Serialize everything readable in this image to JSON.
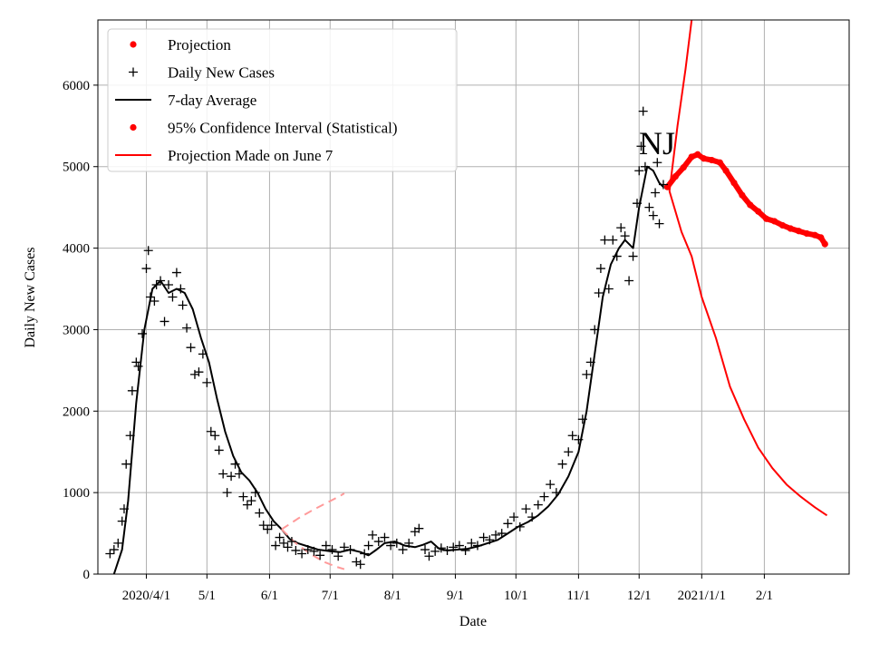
{
  "chart_data": {
    "type": "line",
    "annotation": "NJ",
    "xlabel": "Date",
    "ylabel": "Daily New Cases",
    "ylim": [
      0,
      6800
    ],
    "xlim": [
      "2020-03-08",
      "2021-03-15"
    ],
    "grid": true,
    "legend_position": "top-left",
    "y_ticks": [
      0,
      1000,
      2000,
      3000,
      4000,
      5000,
      6000
    ],
    "x_ticks": [
      {
        "date": "2020-04-01",
        "label": "2020/4/1"
      },
      {
        "date": "2020-05-01",
        "label": "5/1"
      },
      {
        "date": "2020-06-01",
        "label": "6/1"
      },
      {
        "date": "2020-07-01",
        "label": "7/1"
      },
      {
        "date": "2020-08-01",
        "label": "8/1"
      },
      {
        "date": "2020-09-01",
        "label": "9/1"
      },
      {
        "date": "2020-10-01",
        "label": "10/1"
      },
      {
        "date": "2020-11-01",
        "label": "11/1"
      },
      {
        "date": "2020-12-01",
        "label": "12/1"
      },
      {
        "date": "2021-01-01",
        "label": "2021/1/1"
      },
      {
        "date": "2021-02-01",
        "label": "2/1"
      }
    ],
    "legend": [
      {
        "label": "Projection",
        "marker": "dot",
        "color": "#ff0000"
      },
      {
        "label": "Daily New Cases",
        "marker": "plus",
        "color": "#000000"
      },
      {
        "label": "7-day Average",
        "marker": "line",
        "color": "#000000"
      },
      {
        "label": "95% Confidence Interval (Statistical)",
        "marker": "dot",
        "color": "#ff0000"
      },
      {
        "label": "Projection Made on June 7",
        "marker": "line",
        "color": "#ff0000"
      }
    ],
    "series": [
      {
        "name": "7-day Average",
        "color": "#000000",
        "style": "line",
        "points": [
          [
            "2020-03-16",
            0
          ],
          [
            "2020-03-20",
            300
          ],
          [
            "2020-03-23",
            900
          ],
          [
            "2020-03-27",
            2100
          ],
          [
            "2020-03-31",
            3000
          ],
          [
            "2020-04-04",
            3500
          ],
          [
            "2020-04-08",
            3600
          ],
          [
            "2020-04-12",
            3450
          ],
          [
            "2020-04-16",
            3500
          ],
          [
            "2020-04-20",
            3450
          ],
          [
            "2020-04-24",
            3250
          ],
          [
            "2020-04-28",
            2900
          ],
          [
            "2020-05-02",
            2600
          ],
          [
            "2020-05-06",
            2150
          ],
          [
            "2020-05-10",
            1750
          ],
          [
            "2020-05-14",
            1450
          ],
          [
            "2020-05-18",
            1250
          ],
          [
            "2020-05-22",
            1150
          ],
          [
            "2020-05-26",
            1000
          ],
          [
            "2020-05-30",
            800
          ],
          [
            "2020-06-03",
            650
          ],
          [
            "2020-06-07",
            550
          ],
          [
            "2020-06-11",
            430
          ],
          [
            "2020-06-15",
            380
          ],
          [
            "2020-06-20",
            340
          ],
          [
            "2020-06-25",
            300
          ],
          [
            "2020-07-01",
            280
          ],
          [
            "2020-07-06",
            270
          ],
          [
            "2020-07-11",
            300
          ],
          [
            "2020-07-16",
            270
          ],
          [
            "2020-07-20",
            230
          ],
          [
            "2020-07-24",
            300
          ],
          [
            "2020-07-28",
            380
          ],
          [
            "2020-08-02",
            400
          ],
          [
            "2020-08-07",
            350
          ],
          [
            "2020-08-12",
            330
          ],
          [
            "2020-08-16",
            360
          ],
          [
            "2020-08-20",
            400
          ],
          [
            "2020-08-24",
            310
          ],
          [
            "2020-08-28",
            290
          ],
          [
            "2020-09-02",
            300
          ],
          [
            "2020-09-07",
            310
          ],
          [
            "2020-09-12",
            340
          ],
          [
            "2020-09-17",
            380
          ],
          [
            "2020-09-22",
            420
          ],
          [
            "2020-09-27",
            500
          ],
          [
            "2020-10-02",
            580
          ],
          [
            "2020-10-07",
            640
          ],
          [
            "2020-10-12",
            720
          ],
          [
            "2020-10-17",
            830
          ],
          [
            "2020-10-22",
            980
          ],
          [
            "2020-10-27",
            1200
          ],
          [
            "2020-11-01",
            1500
          ],
          [
            "2020-11-05",
            2000
          ],
          [
            "2020-11-09",
            2700
          ],
          [
            "2020-11-13",
            3400
          ],
          [
            "2020-11-17",
            3800
          ],
          [
            "2020-11-21",
            4000
          ],
          [
            "2020-11-24",
            4100
          ],
          [
            "2020-11-28",
            4000
          ],
          [
            "2020-12-01",
            4500
          ],
          [
            "2020-12-05",
            5000
          ],
          [
            "2020-12-08",
            4950
          ],
          [
            "2020-12-11",
            4800
          ],
          [
            "2020-12-13",
            4750
          ]
        ]
      },
      {
        "name": "Projection Made on June 7",
        "color": "#ff0000",
        "style": "line",
        "points": [
          [
            "2020-12-16",
            4700
          ],
          [
            "2020-12-22",
            4200
          ],
          [
            "2020-12-27",
            3900
          ],
          [
            "2021-01-01",
            3400
          ],
          [
            "2021-01-08",
            2900
          ],
          [
            "2021-01-15",
            2300
          ],
          [
            "2021-01-22",
            1900
          ],
          [
            "2021-01-29",
            1550
          ],
          [
            "2021-02-05",
            1300
          ],
          [
            "2021-02-12",
            1100
          ],
          [
            "2021-02-19",
            950
          ],
          [
            "2021-02-26",
            820
          ],
          [
            "2021-03-04",
            720
          ]
        ]
      },
      {
        "name": "Projection Made on June 7 (upper)",
        "color": "#ff0000",
        "style": "line",
        "points": [
          [
            "2020-12-16",
            4700
          ],
          [
            "2020-12-20",
            5500
          ],
          [
            "2020-12-24",
            6200
          ],
          [
            "2020-12-27",
            6800
          ]
        ]
      },
      {
        "name": "95% Confidence Interval (Statistical)",
        "color": "#ff9a9a",
        "style": "dashed",
        "points": [
          [
            "2020-06-07",
            550
          ],
          [
            "2020-06-15",
            680
          ],
          [
            "2020-06-22",
            780
          ],
          [
            "2020-06-29",
            870
          ],
          [
            "2020-07-06",
            960
          ],
          [
            "2020-07-08",
            990
          ]
        ]
      },
      {
        "name": "95% Confidence Interval (Statistical) lower",
        "color": "#ff9a9a",
        "style": "dashed",
        "points": [
          [
            "2020-06-07",
            550
          ],
          [
            "2020-06-14",
            380
          ],
          [
            "2020-06-21",
            250
          ],
          [
            "2020-06-28",
            150
          ],
          [
            "2020-07-04",
            90
          ],
          [
            "2020-07-08",
            60
          ]
        ]
      },
      {
        "name": "Projection",
        "color": "#ff0000",
        "style": "dots",
        "points": [
          [
            "2020-12-15",
            4750
          ],
          [
            "2020-12-19",
            4880
          ],
          [
            "2020-12-23",
            4990
          ],
          [
            "2020-12-27",
            5120
          ],
          [
            "2020-12-30",
            5150
          ],
          [
            "2021-01-02",
            5100
          ],
          [
            "2021-01-06",
            5080
          ],
          [
            "2021-01-10",
            5050
          ],
          [
            "2021-01-13",
            4950
          ],
          [
            "2021-01-17",
            4800
          ],
          [
            "2021-01-21",
            4650
          ],
          [
            "2021-01-25",
            4530
          ],
          [
            "2021-01-29",
            4450
          ],
          [
            "2021-02-02",
            4360
          ],
          [
            "2021-02-06",
            4330
          ],
          [
            "2021-02-10",
            4280
          ],
          [
            "2021-02-14",
            4240
          ],
          [
            "2021-02-18",
            4210
          ],
          [
            "2021-02-22",
            4180
          ],
          [
            "2021-02-26",
            4160
          ],
          [
            "2021-03-01",
            4130
          ],
          [
            "2021-03-03",
            4050
          ]
        ]
      },
      {
        "name": "Daily New Cases",
        "color": "#000000",
        "style": "plus",
        "points": [
          [
            "2020-03-14",
            250
          ],
          [
            "2020-03-16",
            300
          ],
          [
            "2020-03-18",
            380
          ],
          [
            "2020-03-20",
            650
          ],
          [
            "2020-03-21",
            800
          ],
          [
            "2020-03-22",
            1350
          ],
          [
            "2020-03-24",
            1700
          ],
          [
            "2020-03-25",
            2250
          ],
          [
            "2020-03-27",
            2600
          ],
          [
            "2020-03-28",
            2550
          ],
          [
            "2020-03-30",
            2950
          ],
          [
            "2020-04-01",
            3750
          ],
          [
            "2020-04-02",
            3970
          ],
          [
            "2020-04-03",
            3400
          ],
          [
            "2020-04-05",
            3350
          ],
          [
            "2020-04-06",
            3550
          ],
          [
            "2020-04-08",
            3600
          ],
          [
            "2020-04-10",
            3100
          ],
          [
            "2020-04-12",
            3550
          ],
          [
            "2020-04-14",
            3400
          ],
          [
            "2020-04-16",
            3700
          ],
          [
            "2020-04-18",
            3500
          ],
          [
            "2020-04-19",
            3300
          ],
          [
            "2020-04-21",
            3020
          ],
          [
            "2020-04-23",
            2780
          ],
          [
            "2020-04-25",
            2450
          ],
          [
            "2020-04-27",
            2480
          ],
          [
            "2020-04-29",
            2700
          ],
          [
            "2020-05-01",
            2350
          ],
          [
            "2020-05-03",
            1750
          ],
          [
            "2020-05-05",
            1700
          ],
          [
            "2020-05-07",
            1520
          ],
          [
            "2020-05-09",
            1230
          ],
          [
            "2020-05-11",
            1000
          ],
          [
            "2020-05-13",
            1200
          ],
          [
            "2020-05-15",
            1350
          ],
          [
            "2020-05-17",
            1230
          ],
          [
            "2020-05-19",
            950
          ],
          [
            "2020-05-21",
            850
          ],
          [
            "2020-05-23",
            900
          ],
          [
            "2020-05-25",
            1000
          ],
          [
            "2020-05-27",
            750
          ],
          [
            "2020-05-29",
            600
          ],
          [
            "2020-05-31",
            550
          ],
          [
            "2020-06-02",
            600
          ],
          [
            "2020-06-04",
            350
          ],
          [
            "2020-06-06",
            450
          ],
          [
            "2020-06-08",
            380
          ],
          [
            "2020-06-10",
            330
          ],
          [
            "2020-06-12",
            400
          ],
          [
            "2020-06-14",
            290
          ],
          [
            "2020-06-17",
            250
          ],
          [
            "2020-06-20",
            300
          ],
          [
            "2020-06-23",
            280
          ],
          [
            "2020-06-26",
            230
          ],
          [
            "2020-06-29",
            350
          ],
          [
            "2020-07-02",
            300
          ],
          [
            "2020-07-05",
            220
          ],
          [
            "2020-07-08",
            330
          ],
          [
            "2020-07-11",
            300
          ],
          [
            "2020-07-14",
            150
          ],
          [
            "2020-07-16",
            120
          ],
          [
            "2020-07-18",
            250
          ],
          [
            "2020-07-20",
            350
          ],
          [
            "2020-07-22",
            480
          ],
          [
            "2020-07-25",
            400
          ],
          [
            "2020-07-28",
            450
          ],
          [
            "2020-07-31",
            350
          ],
          [
            "2020-08-03",
            380
          ],
          [
            "2020-08-06",
            300
          ],
          [
            "2020-08-09",
            380
          ],
          [
            "2020-08-12",
            520
          ],
          [
            "2020-08-14",
            560
          ],
          [
            "2020-08-17",
            300
          ],
          [
            "2020-08-19",
            220
          ],
          [
            "2020-08-22",
            280
          ],
          [
            "2020-08-25",
            320
          ],
          [
            "2020-08-28",
            290
          ],
          [
            "2020-08-31",
            330
          ],
          [
            "2020-09-03",
            350
          ],
          [
            "2020-09-06",
            290
          ],
          [
            "2020-09-09",
            380
          ],
          [
            "2020-09-12",
            350
          ],
          [
            "2020-09-15",
            450
          ],
          [
            "2020-09-18",
            420
          ],
          [
            "2020-09-21",
            480
          ],
          [
            "2020-09-24",
            500
          ],
          [
            "2020-09-27",
            620
          ],
          [
            "2020-09-30",
            700
          ],
          [
            "2020-10-03",
            580
          ],
          [
            "2020-10-06",
            800
          ],
          [
            "2020-10-09",
            700
          ],
          [
            "2020-10-12",
            850
          ],
          [
            "2020-10-15",
            950
          ],
          [
            "2020-10-18",
            1100
          ],
          [
            "2020-10-21",
            1000
          ],
          [
            "2020-10-24",
            1350
          ],
          [
            "2020-10-27",
            1500
          ],
          [
            "2020-10-29",
            1700
          ],
          [
            "2020-11-01",
            1650
          ],
          [
            "2020-11-03",
            1900
          ],
          [
            "2020-11-05",
            2450
          ],
          [
            "2020-11-07",
            2600
          ],
          [
            "2020-11-09",
            3000
          ],
          [
            "2020-11-11",
            3450
          ],
          [
            "2020-11-12",
            3750
          ],
          [
            "2020-11-14",
            4100
          ],
          [
            "2020-11-16",
            3500
          ],
          [
            "2020-11-18",
            4100
          ],
          [
            "2020-11-20",
            3900
          ],
          [
            "2020-11-22",
            4250
          ],
          [
            "2020-11-24",
            4150
          ],
          [
            "2020-11-26",
            3600
          ],
          [
            "2020-11-28",
            3900
          ],
          [
            "2020-11-30",
            4550
          ],
          [
            "2020-12-01",
            4950
          ],
          [
            "2020-12-02",
            5250
          ],
          [
            "2020-12-03",
            5680
          ],
          [
            "2020-12-04",
            5000
          ],
          [
            "2020-12-06",
            4500
          ],
          [
            "2020-12-08",
            4400
          ],
          [
            "2020-12-09",
            4680
          ],
          [
            "2020-12-10",
            5050
          ],
          [
            "2020-12-11",
            4300
          ],
          [
            "2020-12-13",
            4780
          ]
        ]
      }
    ]
  }
}
